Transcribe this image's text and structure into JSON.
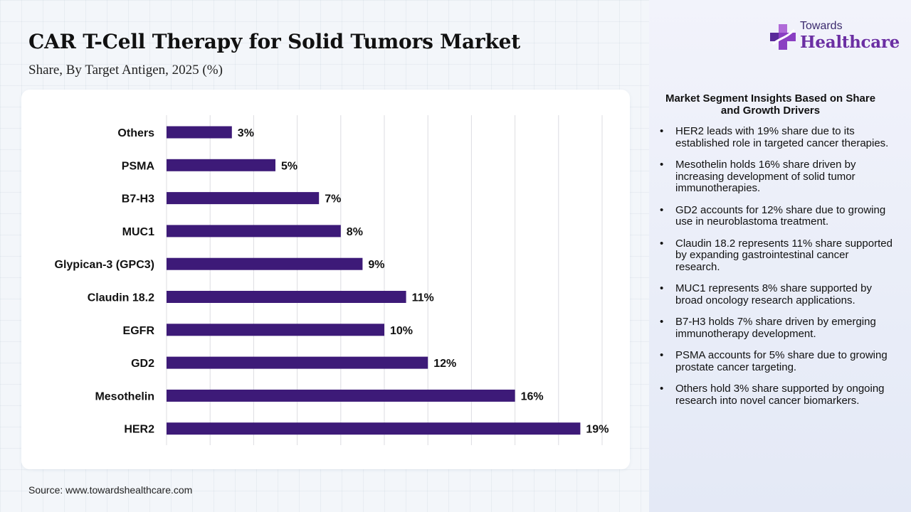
{
  "title": "CAR T-Cell Therapy for Solid Tumors Market",
  "subtitle": "Share, By Target Antigen, 2025 (%)",
  "source": "Source: www.towardshealthcare.com",
  "logo": {
    "top": "Towards",
    "main": "Healthcare",
    "icon": "medical-cross-icon"
  },
  "colors": {
    "bar": "#3d1a78",
    "grid": "#dcdce2",
    "logo_main": "#6b2fa3"
  },
  "insights": {
    "title": "Market Segment Insights Based on Share and Growth Drivers",
    "items": [
      "HER2 leads with 19% share due to its established role in targeted cancer therapies.",
      "Mesothelin holds 16% share driven by increasing development of solid tumor immunotherapies.",
      "GD2 accounts for 12% share due to growing use in neuroblastoma treatment.",
      "Claudin 18.2 represents 11% share supported by expanding gastrointestinal cancer research.",
      "MUC1 represents 8% share supported by broad oncology research applications.",
      "B7-H3 holds 7% share driven by emerging immunotherapy development.",
      "PSMA accounts for 5% share due to growing prostate cancer targeting.",
      "Others hold 3% share supported by ongoing research into novel cancer biomarkers."
    ]
  },
  "chart_data": {
    "type": "bar",
    "orientation": "horizontal",
    "categories": [
      "Others",
      "PSMA",
      "B7-H3",
      "MUC1",
      "Glypican-3 (GPC3)",
      "Claudin 18.2",
      "EGFR",
      "GD2",
      "Mesothelin",
      "HER2"
    ],
    "values": [
      3,
      5,
      7,
      8,
      9,
      11,
      10,
      12,
      16,
      19
    ],
    "labels": [
      "3%",
      "5%",
      "7%",
      "8%",
      "9%",
      "11%",
      "10%",
      "12%",
      "16%",
      "19%"
    ],
    "xlim": [
      0,
      20
    ],
    "grid": true,
    "legend": "none"
  }
}
